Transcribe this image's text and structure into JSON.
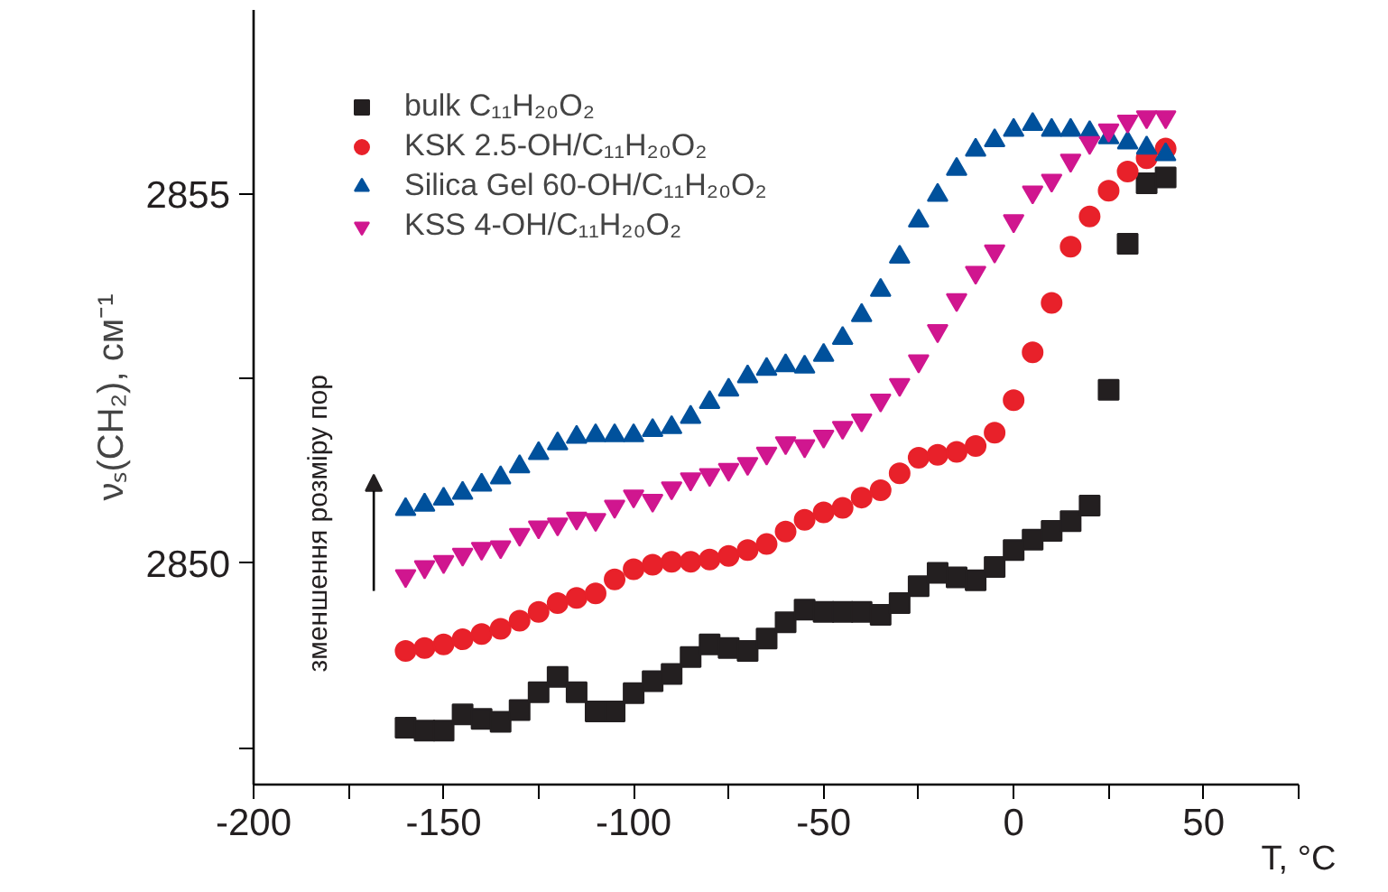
{
  "chart_data": {
    "type": "scatter",
    "xlabel": "T, °C",
    "ylabel": "νₛ(CH₂), см⁻¹",
    "x": [
      -160,
      -155,
      -150,
      -145,
      -140,
      -135,
      -130,
      -125,
      -120,
      -115,
      -110,
      -105,
      -100,
      -95,
      -90,
      -85,
      -80,
      -75,
      -70,
      -65,
      -60,
      -55,
      -50,
      -45,
      -40,
      -35,
      -30,
      -25,
      -20,
      -15,
      -10,
      -5,
      0,
      5,
      10,
      15,
      20,
      25,
      30,
      35,
      40
    ],
    "series": [
      {
        "name": "bulk C₁₁H₂₀O₂",
        "color": "#231f20",
        "marker": "square",
        "values": [
          2847.77,
          2847.73,
          2847.73,
          2847.95,
          2847.89,
          2847.85,
          2848.01,
          2848.25,
          2848.46,
          2848.25,
          2847.99,
          2847.99,
          2848.24,
          2848.4,
          2848.5,
          2848.73,
          2848.9,
          2848.85,
          2848.81,
          2848.98,
          2849.2,
          2849.37,
          2849.34,
          2849.34,
          2849.34,
          2849.3,
          2849.46,
          2849.69,
          2849.87,
          2849.81,
          2849.77,
          2849.95,
          2850.18,
          2850.32,
          2850.44,
          2850.57,
          2850.78,
          2852.35,
          2854.33,
          2855.15,
          2855.23
        ]
      },
      {
        "name": "KSK 2.5-OH/C₁₁H₂₀O₂",
        "color": "#e8212a",
        "marker": "circle",
        "values": [
          2848.81,
          2848.85,
          2848.9,
          2848.97,
          2849.04,
          2849.11,
          2849.22,
          2849.34,
          2849.46,
          2849.53,
          2849.59,
          2849.78,
          2849.92,
          2849.98,
          2850.02,
          2850.02,
          2850.05,
          2850.1,
          2850.18,
          2850.26,
          2850.43,
          2850.59,
          2850.69,
          2850.75,
          2850.89,
          2850.99,
          2851.22,
          2851.43,
          2851.47,
          2851.51,
          2851.59,
          2851.77,
          2852.21,
          2852.86,
          2853.53,
          2854.29,
          2854.7,
          2855.05,
          2855.31,
          2855.49,
          2855.62
        ]
      },
      {
        "name": "Silica Gel 60-OH/C₁₁H₂₀O₂",
        "color": "#00519c",
        "marker": "triangle",
        "values": [
          2850.73,
          2850.79,
          2850.87,
          2850.95,
          2851.06,
          2851.16,
          2851.31,
          2851.49,
          2851.62,
          2851.71,
          2851.73,
          2851.73,
          2851.73,
          2851.8,
          2851.84,
          2851.98,
          2852.18,
          2852.35,
          2852.53,
          2852.63,
          2852.68,
          2852.66,
          2852.82,
          2853.05,
          2853.36,
          2853.7,
          2854.15,
          2854.64,
          2854.99,
          2855.34,
          2855.6,
          2855.73,
          2855.87,
          2855.95,
          2855.87,
          2855.87,
          2855.84,
          2855.77,
          2855.7,
          2855.63,
          2855.54
        ]
      },
      {
        "name": "KSS 4-OH/C₁₁H₂₀O₂",
        "color": "#d0168f",
        "marker": "triangle",
        "values": [
          2849.83,
          2849.95,
          2850.02,
          2850.12,
          2850.2,
          2850.22,
          2850.39,
          2850.49,
          2850.53,
          2850.61,
          2850.59,
          2850.77,
          2850.91,
          2850.85,
          2851.02,
          2851.14,
          2851.2,
          2851.27,
          2851.35,
          2851.49,
          2851.63,
          2851.59,
          2851.72,
          2851.84,
          2851.94,
          2852.21,
          2852.42,
          2852.74,
          2853.15,
          2853.57,
          2853.94,
          2854.23,
          2854.64,
          2855.03,
          2855.19,
          2855.46,
          2855.7,
          2855.87,
          2855.99,
          2856.05,
          2856.05
        ]
      }
    ],
    "xlim": [
      -200,
      75
    ],
    "ylim": [
      2847,
      2857.5
    ],
    "xticks": [
      -200,
      {
        "value": -175,
        "label": null
      },
      -150,
      {
        "value": -125,
        "label": null
      },
      -100,
      {
        "value": -75,
        "label": null
      },
      -50,
      {
        "value": -25,
        "label": null
      },
      0,
      {
        "value": 25,
        "label": null
      },
      50,
      {
        "value": 75,
        "label": null
      }
    ],
    "yticks": [
      {
        "value": 2847.5,
        "label": null
      },
      2850,
      {
        "value": 2852.5,
        "label": null
      },
      2855
    ],
    "annotations": [
      "зменшення розміру пор"
    ],
    "grid": false,
    "legend": "top left"
  }
}
